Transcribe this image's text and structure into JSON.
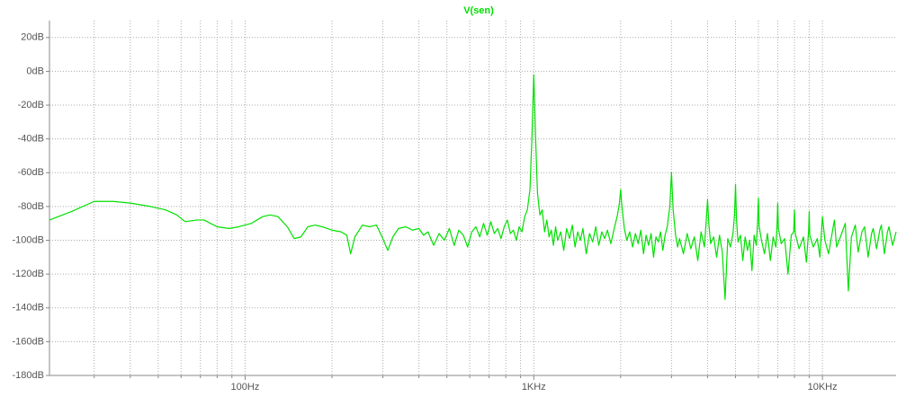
{
  "chart_data": {
    "type": "line",
    "x": [
      21,
      25,
      30,
      35,
      40,
      47,
      53,
      58,
      62,
      68,
      72,
      80,
      88,
      95,
      105,
      115,
      122,
      130,
      140,
      148,
      156,
      165,
      175,
      185,
      200,
      215,
      225,
      232,
      240,
      255,
      270,
      285,
      300,
      312,
      325,
      340,
      360,
      380,
      400,
      415,
      430,
      450,
      470,
      490,
      510,
      530,
      550,
      570,
      590,
      610,
      630,
      650,
      670,
      690,
      710,
      730,
      750,
      770,
      790,
      810,
      830,
      850,
      870,
      890,
      910,
      930,
      950,
      970,
      985,
      1000,
      1015,
      1030,
      1050,
      1070,
      1090,
      1110,
      1130,
      1150,
      1170,
      1190,
      1210,
      1240,
      1270,
      1300,
      1330,
      1360,
      1390,
      1420,
      1450,
      1480,
      1520,
      1560,
      1600,
      1640,
      1680,
      1720,
      1760,
      1800,
      1850,
      1900,
      1950,
      1980,
      2000,
      2020,
      2060,
      2100,
      2150,
      2200,
      2250,
      2300,
      2350,
      2400,
      2450,
      2500,
      2550,
      2600,
      2650,
      2700,
      2750,
      2800,
      2850,
      2900,
      2960,
      3000,
      3040,
      3100,
      3150,
      3200,
      3300,
      3400,
      3500,
      3600,
      3700,
      3800,
      3900,
      3960,
      4000,
      4040,
      4100,
      4200,
      4300,
      4400,
      4500,
      4600,
      4700,
      4800,
      4900,
      4960,
      5000,
      5040,
      5100,
      5200,
      5300,
      5400,
      5500,
      5600,
      5700,
      5800,
      5900,
      5960,
      6000,
      6040,
      6150,
      6300,
      6450,
      6600,
      6750,
      6900,
      6960,
      7000,
      7040,
      7200,
      7400,
      7600,
      7800,
      7950,
      8000,
      8050,
      8300,
      8600,
      8800,
      8960,
      9000,
      9040,
      9300,
      9600,
      9800,
      10000,
      10200,
      10500,
      10800,
      11000,
      11200,
      11600,
      12000,
      12300,
      12600,
      13000,
      13300,
      13700,
      14000,
      14400,
      14800,
      15000,
      15400,
      15800,
      16000,
      16400,
      16800,
      17000,
      17500,
      18000
    ],
    "series": [
      {
        "name": "V(sen)",
        "color": "#00e000",
        "values": [
          -88,
          -83,
          -77,
          -77,
          -78,
          -80,
          -82,
          -85,
          -89,
          -88,
          -88,
          -92,
          -93,
          -92,
          -90,
          -86,
          -85,
          -86,
          -92,
          -99,
          -98,
          -92,
          -91,
          -92,
          -94,
          -95,
          -97,
          -108,
          -98,
          -91,
          -92,
          -91,
          -99,
          -106,
          -98,
          -93,
          -92,
          -94,
          -93,
          -97,
          -95,
          -103,
          -96,
          -100,
          -93,
          -103,
          -94,
          -97,
          -104,
          -95,
          -92,
          -98,
          -90,
          -97,
          -89,
          -96,
          -93,
          -99,
          -92,
          -88,
          -96,
          -94,
          -100,
          -92,
          -95,
          -86,
          -82,
          -70,
          -40,
          -2,
          -40,
          -72,
          -85,
          -82,
          -95,
          -88,
          -98,
          -94,
          -103,
          -92,
          -100,
          -95,
          -106,
          -93,
          -99,
          -91,
          -104,
          -95,
          -100,
          -93,
          -108,
          -96,
          -101,
          -92,
          -103,
          -95,
          -99,
          -94,
          -102,
          -93,
          -85,
          -78,
          -70,
          -80,
          -93,
          -100,
          -95,
          -104,
          -96,
          -102,
          -94,
          -108,
          -97,
          -103,
          -96,
          -110,
          -98,
          -101,
          -95,
          -106,
          -97,
          -92,
          -80,
          -60,
          -82,
          -97,
          -104,
          -99,
          -108,
          -96,
          -105,
          -98,
          -112,
          -95,
          -104,
          -88,
          -76,
          -90,
          -102,
          -98,
          -110,
          -97,
          -107,
          -135,
          -99,
          -104,
          -96,
          -85,
          -67,
          -88,
          -101,
          -97,
          -112,
          -98,
          -106,
          -100,
          -118,
          -97,
          -103,
          -90,
          -75,
          -92,
          -100,
          -108,
          -96,
          -112,
          -98,
          -104,
          -92,
          -78,
          -93,
          -102,
          -99,
          -120,
          -97,
          -95,
          -82,
          -96,
          -105,
          -98,
          -113,
          -94,
          -83,
          -97,
          -104,
          -99,
          -110,
          -86,
          -100,
          -108,
          -96,
          -88,
          -104,
          -97,
          -90,
          -130,
          -98,
          -91,
          -107,
          -95,
          -92,
          -110,
          -96,
          -93,
          -105,
          -94,
          -91,
          -108,
          -95,
          -92,
          -103,
          -95
        ]
      }
    ],
    "xlog": true,
    "xlim": [
      21,
      18000
    ],
    "xticks": [
      {
        "value": 100,
        "label": "100Hz"
      },
      {
        "value": 1000,
        "label": "1KHz"
      },
      {
        "value": 10000,
        "label": "10KHz"
      }
    ],
    "xminor": [
      30,
      40,
      50,
      60,
      70,
      80,
      90,
      200,
      300,
      400,
      500,
      600,
      700,
      800,
      900,
      2000,
      3000,
      4000,
      5000,
      6000,
      7000,
      8000,
      9000
    ],
    "ylim": [
      -180,
      30
    ],
    "yticks": [
      {
        "value": 20,
        "label": "20dB"
      },
      {
        "value": 0,
        "label": "0dB"
      },
      {
        "value": -20,
        "label": "-20dB"
      },
      {
        "value": -40,
        "label": "-40dB"
      },
      {
        "value": -60,
        "label": "-60dB"
      },
      {
        "value": -80,
        "label": "-80dB"
      },
      {
        "value": -100,
        "label": "-100dB"
      },
      {
        "value": -120,
        "label": "-120dB"
      },
      {
        "value": -140,
        "label": "-140dB"
      },
      {
        "value": -160,
        "label": "-160dB"
      },
      {
        "value": -180,
        "label": "-180dB"
      }
    ],
    "grid": true
  }
}
